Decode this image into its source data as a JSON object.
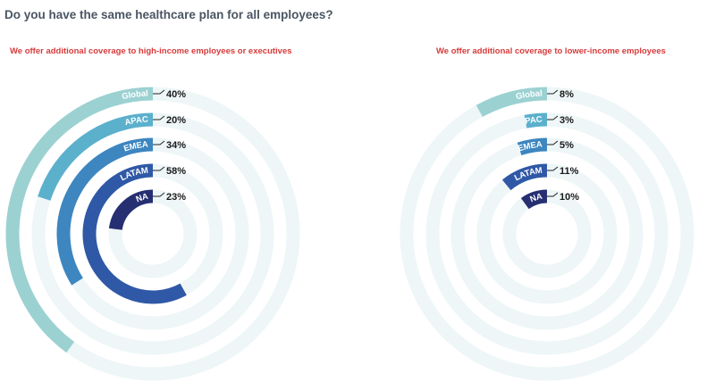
{
  "page": {
    "title": "Do you have the same healthcare plan for all employees?"
  },
  "colors": {
    "track": "#eef6f7",
    "series": [
      "#9cd1d2",
      "#5bb0cc",
      "#3d86c0",
      "#2f58a6",
      "#262f71"
    ],
    "subtitle": "#d83a3a",
    "title": "#4a5563"
  },
  "chart_data": [
    {
      "type": "radial-bar",
      "title": "We offer additional coverage to high-income employees or executives",
      "categories": [
        "Global",
        "APAC",
        "EMEA",
        "LATAM",
        "NA"
      ],
      "values": [
        40,
        20,
        34,
        58,
        23
      ],
      "value_labels": [
        "40%",
        "20%",
        "34%",
        "58%",
        "23%"
      ],
      "unit": "%",
      "max": 100
    },
    {
      "type": "radial-bar",
      "title": "We offer additional coverage to lower-income employees",
      "categories": [
        "Global",
        "APAC",
        "EMEA",
        "LATAM",
        "NA"
      ],
      "values": [
        8,
        3,
        5,
        11,
        10
      ],
      "value_labels": [
        "8%",
        "3%",
        "5%",
        "11%",
        "10%"
      ],
      "unit": "%",
      "max": 100
    }
  ]
}
